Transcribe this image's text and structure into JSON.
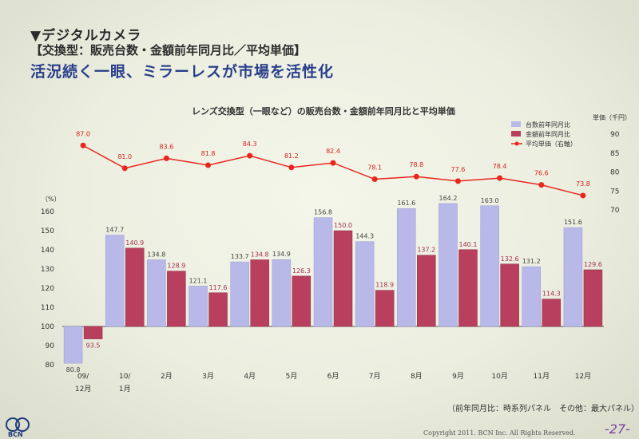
{
  "header": {
    "section": "▼デジタルカメラ",
    "subtitle": "【交換型：販売台数・金額前年同月比／平均単価】",
    "headline": "活況続く一眼、ミラーレスが市場を活性化"
  },
  "chart_data": {
    "type": "bar+line",
    "title": "レンズ交換型（一眼など）の販売台数・金額前年同月比と平均単価",
    "y_left_unit": "（%）",
    "y_left_ticks": [
      "80",
      "90",
      "100",
      "110",
      "120",
      "130",
      "140",
      "150",
      "160"
    ],
    "y_left_range": [
      80,
      160
    ],
    "y_right_unit": "単価（千円）",
    "y_right_ticks": [
      "70",
      "75",
      "80",
      "85",
      "90"
    ],
    "y_right_range": [
      70,
      90
    ],
    "categories": [
      {
        "line1": "09/",
        "line2": "12月"
      },
      {
        "line1": "10/",
        "line2": "1月"
      },
      {
        "line1": "2月",
        "line2": ""
      },
      {
        "line1": "3月",
        "line2": ""
      },
      {
        "line1": "4月",
        "line2": ""
      },
      {
        "line1": "5月",
        "line2": ""
      },
      {
        "line1": "6月",
        "line2": ""
      },
      {
        "line1": "7月",
        "line2": ""
      },
      {
        "line1": "8月",
        "line2": ""
      },
      {
        "line1": "9月",
        "line2": ""
      },
      {
        "line1": "10月",
        "line2": ""
      },
      {
        "line1": "11月",
        "line2": ""
      },
      {
        "line1": "12月",
        "line2": ""
      }
    ],
    "series": [
      {
        "name": "台数前年同月比",
        "kind": "bar",
        "color": "#b8b9e8",
        "values": [
          80.8,
          147.7,
          134.8,
          121.1,
          133.7,
          134.9,
          156.8,
          144.3,
          161.6,
          164.2,
          163.0,
          131.2,
          151.6
        ],
        "labels": [
          "80.8",
          "147.7",
          "134.8",
          "121.1",
          "133.7",
          "134.9",
          "156.8",
          "144.3",
          "161.6",
          "164.2",
          "163.0",
          "131.2",
          "151.6"
        ]
      },
      {
        "name": "金額前年同月比",
        "kind": "bar",
        "color": "#b8405e",
        "values": [
          93.5,
          140.9,
          128.9,
          117.6,
          134.8,
          126.3,
          150.0,
          118.9,
          137.2,
          140.1,
          132.6,
          114.3,
          129.6
        ],
        "labels": [
          "93.5",
          "140.9",
          "128.9",
          "117.6",
          "134.8",
          "126.3",
          "150.0",
          "118.9",
          "137.2",
          "140.1",
          "132.6",
          "114.3",
          "129.6"
        ]
      },
      {
        "name": "平均単価（右軸）",
        "kind": "line",
        "color": "#e8271c",
        "values": [
          87.0,
          81.0,
          83.6,
          81.8,
          84.3,
          81.2,
          82.4,
          78.1,
          78.8,
          77.6,
          78.4,
          76.6,
          73.8
        ],
        "labels": [
          "87.0",
          "81.0",
          "83.6",
          "81.8",
          "84.3",
          "81.2",
          "82.4",
          "78.1",
          "78.8",
          "77.6",
          "78.4",
          "76.6",
          "73.8"
        ]
      }
    ]
  },
  "footnote": "（前年同月比：時系列パネル　その他：最大パネル）",
  "copyright": "Copyright 2011. BCN Inc. All Rights Reserved.",
  "page_number": "-27-",
  "logo_text": "BCN"
}
